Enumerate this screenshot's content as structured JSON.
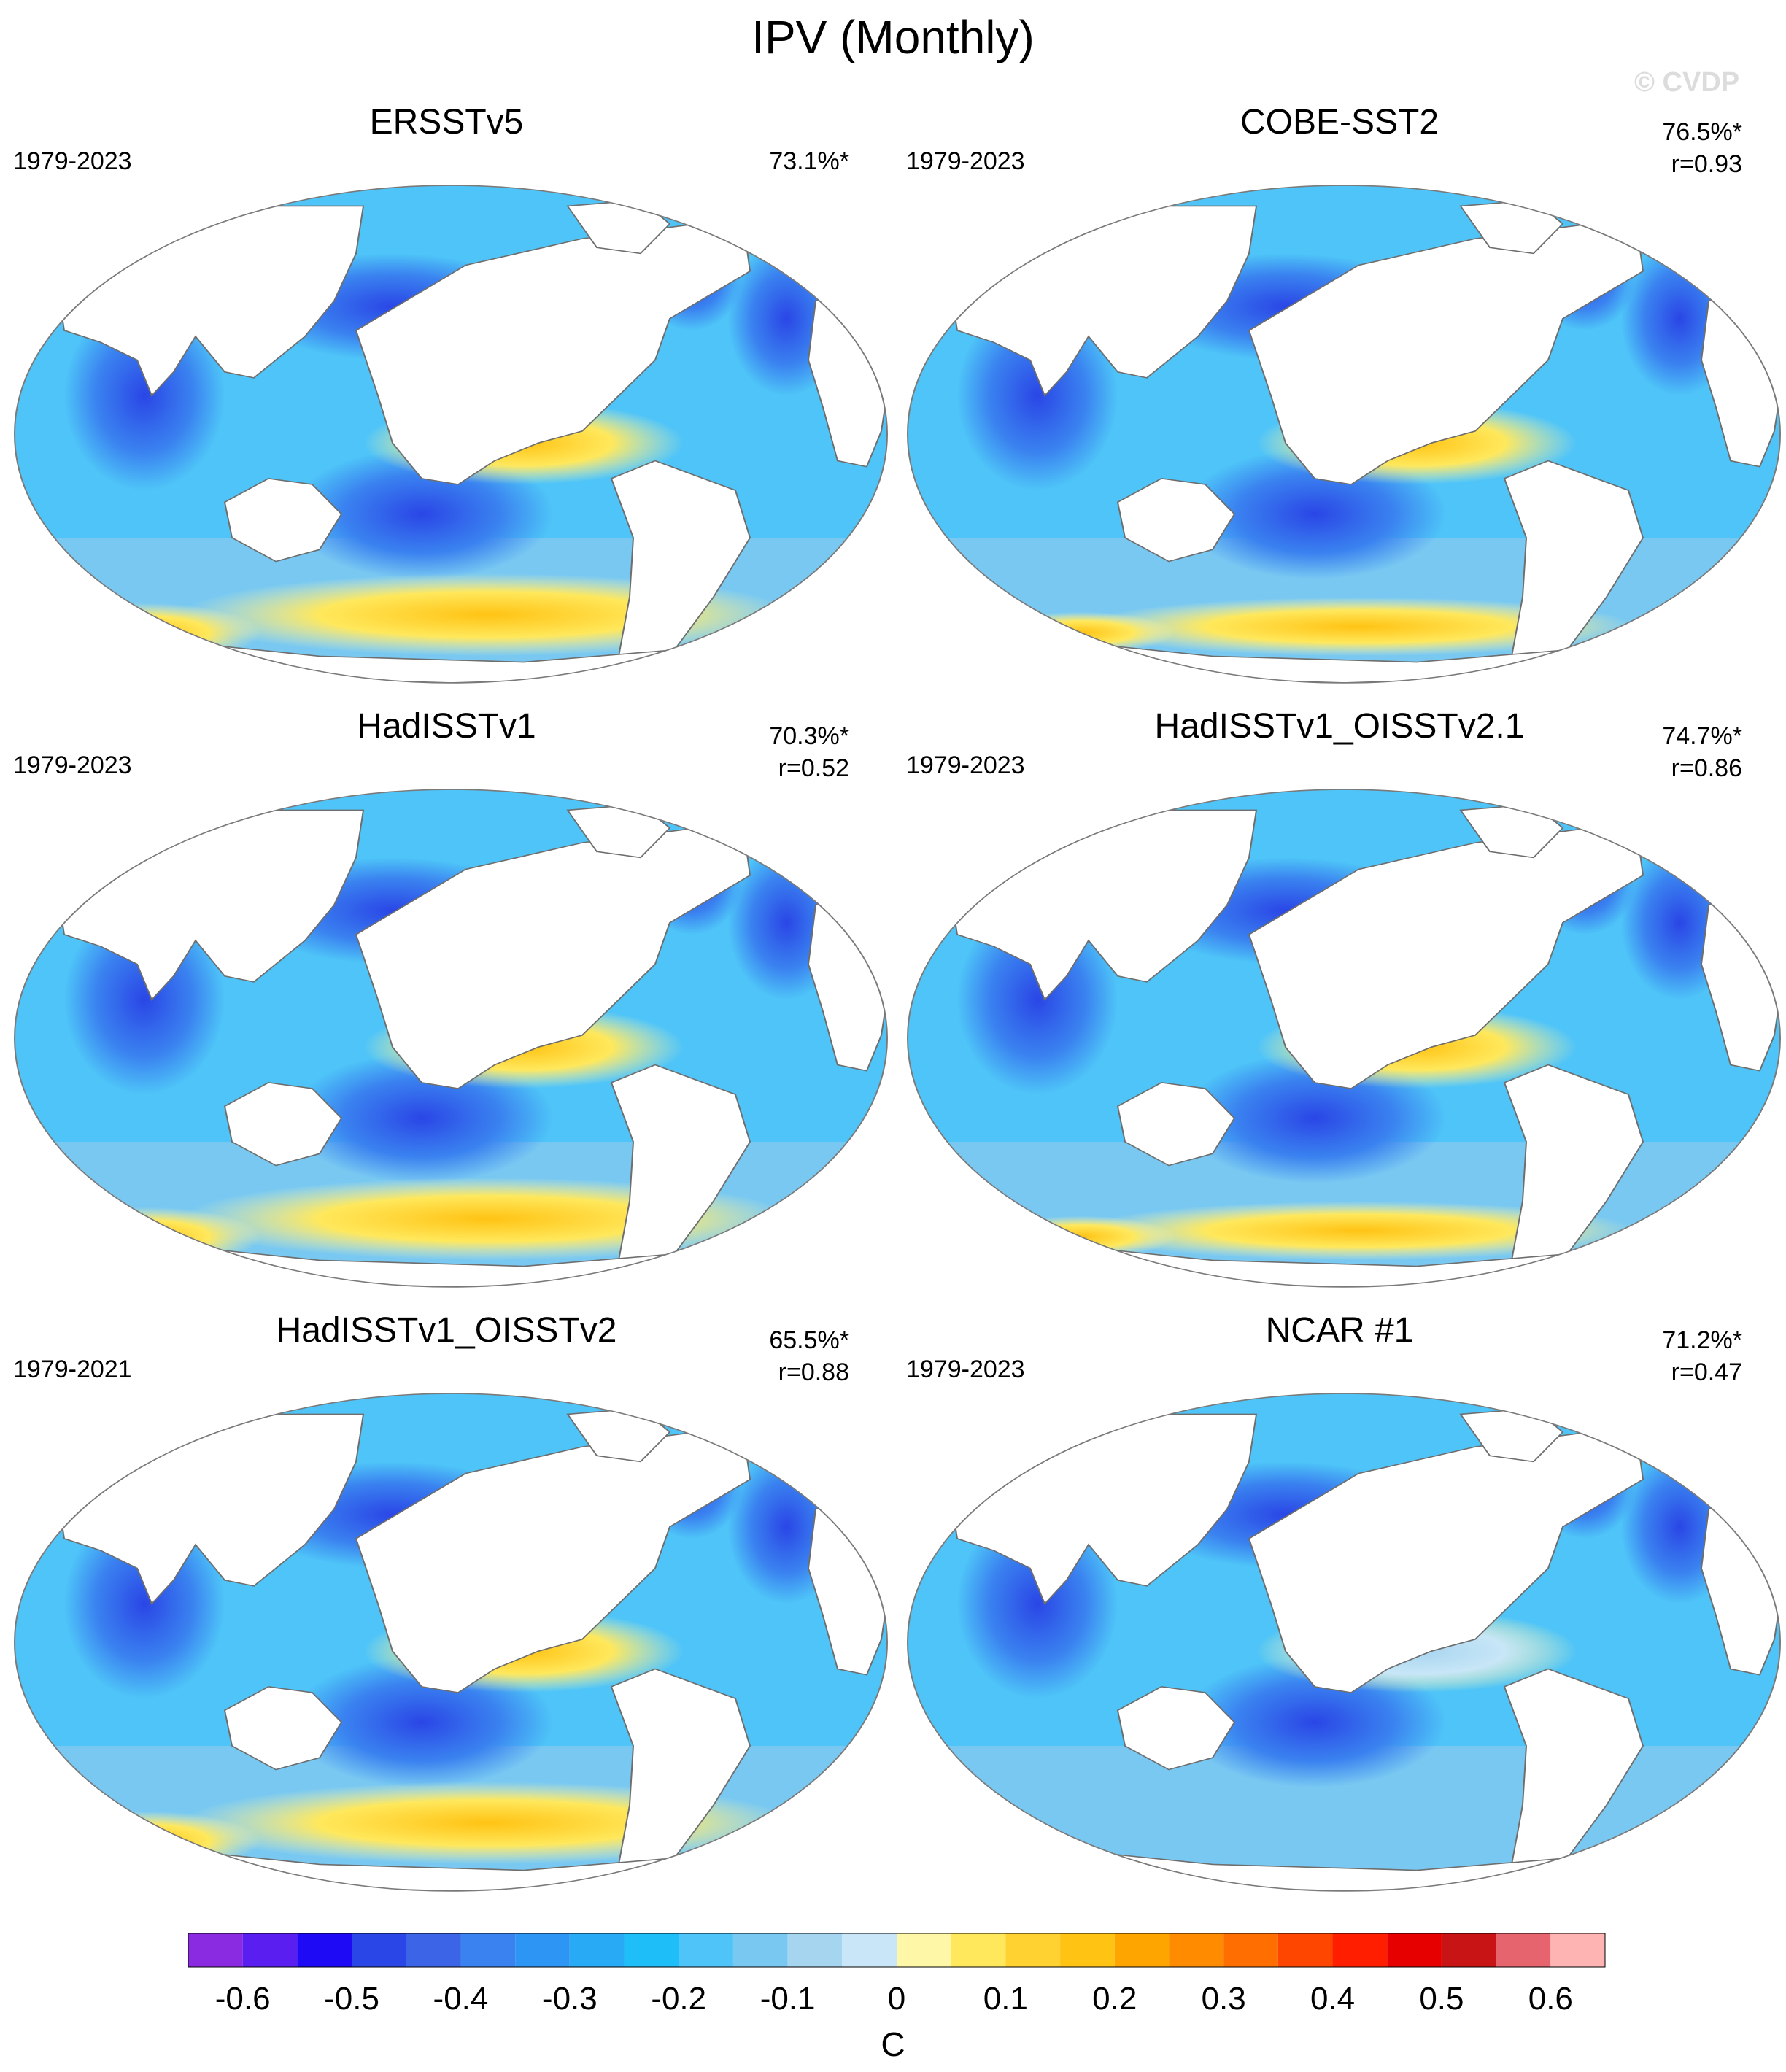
{
  "title": "IPV (Monthly)",
  "watermark": "© CVDP",
  "panels": [
    {
      "name": "ERSSTv5",
      "period": "1979-2023",
      "pct": "73.1%*",
      "r": "",
      "pattern": "warm_south"
    },
    {
      "name": "COBE-SST2",
      "period": "1979-2023",
      "pct": "76.5%*",
      "r": "r=0.93",
      "pattern": "mixed"
    },
    {
      "name": "HadISSTv1",
      "period": "1979-2023",
      "pct": "70.3%*",
      "r": "r=0.52",
      "pattern": "warm_south"
    },
    {
      "name": "HadISSTv1_OISSTv2.1",
      "period": "1979-2023",
      "pct": "74.7%*",
      "r": "r=0.86",
      "pattern": "mixed"
    },
    {
      "name": "HadISSTv1_OISSTv2",
      "period": "1979-2021",
      "pct": "65.5%*",
      "r": "r=0.88",
      "pattern": "warm_south"
    },
    {
      "name": "NCAR #1",
      "period": "1979-2023",
      "pct": "71.2%*",
      "r": "r=0.47",
      "pattern": "cool"
    }
  ],
  "colorbar": {
    "colors": [
      "#8a2be2",
      "#5a1ef0",
      "#1e0af5",
      "#2a46e6",
      "#3c64e6",
      "#3a82f0",
      "#2d96f5",
      "#28aaf5",
      "#1ebef8",
      "#4ec4f8",
      "#78c8f2",
      "#a6d5f0",
      "#c8e6f7",
      "#fff7a8",
      "#ffe85c",
      "#ffd232",
      "#ffc314",
      "#ffa500",
      "#ff8c00",
      "#ff6e00",
      "#ff4600",
      "#ff1e00",
      "#e60000",
      "#c81414",
      "#e6646e",
      "#ffb4b4"
    ],
    "tick_labels": [
      "-0.6",
      "-0.5",
      "-0.4",
      "-0.3",
      "-0.2",
      "-0.1",
      "0",
      "0.1",
      "0.2",
      "0.3",
      "0.4",
      "0.5",
      "0.6"
    ],
    "unit": "C"
  }
}
